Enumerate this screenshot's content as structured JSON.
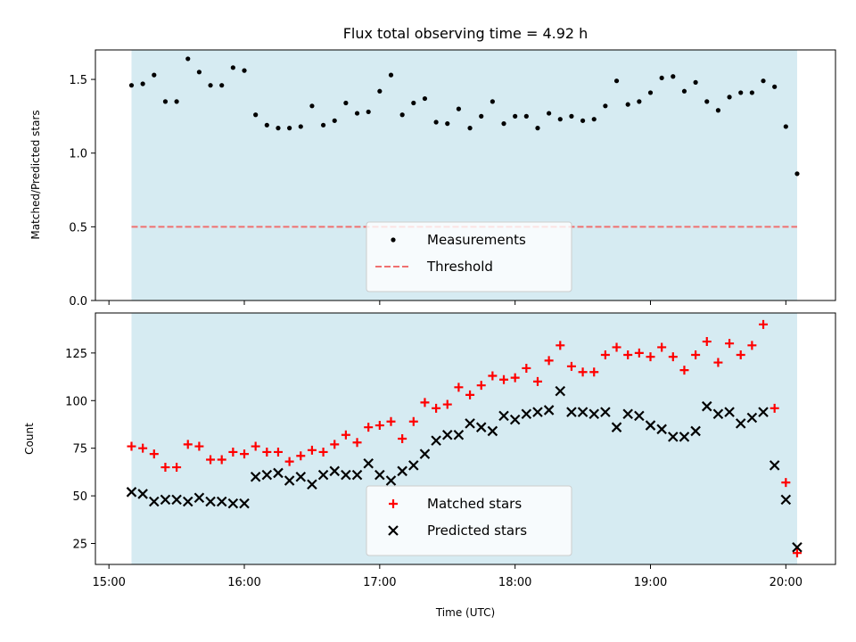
{
  "chart_data": [
    {
      "type": "scatter",
      "title": "Flux total observing time = 4.92 h",
      "ylabel": "Matched/Predicted stars",
      "ylim": [
        0,
        1.7
      ],
      "xlim": [
        "14:54",
        "20:22"
      ],
      "yticks": [
        {
          "v": 0,
          "label": "0.0"
        },
        {
          "v": 0.5,
          "label": "0.5"
        },
        {
          "v": 1.0,
          "label": "1.0"
        },
        {
          "v": 1.5,
          "label": "1.5"
        }
      ],
      "shaded_span": {
        "x0": "15:10",
        "x1": "20:05",
        "color": "#add8e6"
      },
      "legend_position": "lower-center",
      "threshold": {
        "name": "Threshold",
        "value": 0.5,
        "color": "#f07070",
        "style": "dashed"
      },
      "series": [
        {
          "name": "Measurements",
          "marker": "dot",
          "color": "#000000",
          "points": [
            [
              "15:10",
              1.46
            ],
            [
              "15:15",
              1.47
            ],
            [
              "15:20",
              1.53
            ],
            [
              "15:25",
              1.35
            ],
            [
              "15:30",
              1.35
            ],
            [
              "15:35",
              1.64
            ],
            [
              "15:40",
              1.55
            ],
            [
              "15:45",
              1.46
            ],
            [
              "15:50",
              1.46
            ],
            [
              "15:55",
              1.58
            ],
            [
              "16:00",
              1.56
            ],
            [
              "16:05",
              1.26
            ],
            [
              "16:10",
              1.19
            ],
            [
              "16:15",
              1.17
            ],
            [
              "16:20",
              1.17
            ],
            [
              "16:25",
              1.18
            ],
            [
              "16:30",
              1.32
            ],
            [
              "16:35",
              1.19
            ],
            [
              "16:40",
              1.22
            ],
            [
              "16:45",
              1.34
            ],
            [
              "16:50",
              1.27
            ],
            [
              "16:55",
              1.28
            ],
            [
              "17:00",
              1.42
            ],
            [
              "17:05",
              1.53
            ],
            [
              "17:10",
              1.26
            ],
            [
              "17:15",
              1.34
            ],
            [
              "17:20",
              1.37
            ],
            [
              "17:25",
              1.21
            ],
            [
              "17:30",
              1.2
            ],
            [
              "17:35",
              1.3
            ],
            [
              "17:40",
              1.17
            ],
            [
              "17:45",
              1.25
            ],
            [
              "17:50",
              1.35
            ],
            [
              "17:55",
              1.2
            ],
            [
              "18:00",
              1.25
            ],
            [
              "18:05",
              1.25
            ],
            [
              "18:10",
              1.17
            ],
            [
              "18:15",
              1.27
            ],
            [
              "18:20",
              1.23
            ],
            [
              "18:25",
              1.25
            ],
            [
              "18:30",
              1.22
            ],
            [
              "18:35",
              1.23
            ],
            [
              "18:40",
              1.32
            ],
            [
              "18:45",
              1.49
            ],
            [
              "18:50",
              1.33
            ],
            [
              "18:55",
              1.35
            ],
            [
              "19:00",
              1.41
            ],
            [
              "19:05",
              1.51
            ],
            [
              "19:10",
              1.52
            ],
            [
              "19:15",
              1.42
            ],
            [
              "19:20",
              1.48
            ],
            [
              "19:25",
              1.35
            ],
            [
              "19:30",
              1.29
            ],
            [
              "19:35",
              1.38
            ],
            [
              "19:40",
              1.41
            ],
            [
              "19:45",
              1.41
            ],
            [
              "19:50",
              1.49
            ],
            [
              "19:55",
              1.45
            ],
            [
              "20:00",
              1.18
            ],
            [
              "20:05",
              0.86
            ]
          ]
        }
      ]
    },
    {
      "type": "scatter",
      "xlabel": "Time (UTC)",
      "ylabel": "Count",
      "ylim": [
        14,
        146
      ],
      "xlim": [
        "14:54",
        "20:22"
      ],
      "yticks": [
        {
          "v": 25,
          "label": "25"
        },
        {
          "v": 50,
          "label": "50"
        },
        {
          "v": 75,
          "label": "75"
        },
        {
          "v": 100,
          "label": "100"
        },
        {
          "v": 125,
          "label": "125"
        }
      ],
      "xticks": [
        {
          "v": "15:00",
          "label": "15:00"
        },
        {
          "v": "16:00",
          "label": "16:00"
        },
        {
          "v": "17:00",
          "label": "17:00"
        },
        {
          "v": "18:00",
          "label": "18:00"
        },
        {
          "v": "19:00",
          "label": "19:00"
        },
        {
          "v": "20:00",
          "label": "20:00"
        }
      ],
      "shaded_span": {
        "x0": "15:10",
        "x1": "20:05",
        "color": "#add8e6"
      },
      "legend_position": "lower-center",
      "series": [
        {
          "name": "Matched stars",
          "marker": "plus",
          "color": "#ff0000",
          "points": [
            [
              "15:10",
              76
            ],
            [
              "15:15",
              75
            ],
            [
              "15:20",
              72
            ],
            [
              "15:25",
              65
            ],
            [
              "15:30",
              65
            ],
            [
              "15:35",
              77
            ],
            [
              "15:40",
              76
            ],
            [
              "15:45",
              69
            ],
            [
              "15:50",
              69
            ],
            [
              "15:55",
              73
            ],
            [
              "16:00",
              72
            ],
            [
              "16:05",
              76
            ],
            [
              "16:10",
              73
            ],
            [
              "16:15",
              73
            ],
            [
              "16:20",
              68
            ],
            [
              "16:25",
              71
            ],
            [
              "16:30",
              74
            ],
            [
              "16:35",
              73
            ],
            [
              "16:40",
              77
            ],
            [
              "16:45",
              82
            ],
            [
              "16:50",
              78
            ],
            [
              "16:55",
              86
            ],
            [
              "17:00",
              87
            ],
            [
              "17:05",
              89
            ],
            [
              "17:10",
              80
            ],
            [
              "17:15",
              89
            ],
            [
              "17:20",
              99
            ],
            [
              "17:25",
              96
            ],
            [
              "17:30",
              98
            ],
            [
              "17:35",
              107
            ],
            [
              "17:40",
              103
            ],
            [
              "17:45",
              108
            ],
            [
              "17:50",
              113
            ],
            [
              "17:55",
              111
            ],
            [
              "18:00",
              112
            ],
            [
              "18:05",
              117
            ],
            [
              "18:10",
              110
            ],
            [
              "18:15",
              121
            ],
            [
              "18:20",
              129
            ],
            [
              "18:25",
              118
            ],
            [
              "18:30",
              115
            ],
            [
              "18:35",
              115
            ],
            [
              "18:40",
              124
            ],
            [
              "18:45",
              128
            ],
            [
              "18:50",
              124
            ],
            [
              "18:55",
              125
            ],
            [
              "19:00",
              123
            ],
            [
              "19:05",
              128
            ],
            [
              "19:10",
              123
            ],
            [
              "19:15",
              116
            ],
            [
              "19:20",
              124
            ],
            [
              "19:25",
              131
            ],
            [
              "19:30",
              120
            ],
            [
              "19:35",
              130
            ],
            [
              "19:40",
              124
            ],
            [
              "19:45",
              129
            ],
            [
              "19:50",
              140
            ],
            [
              "19:55",
              96
            ],
            [
              "20:00",
              57
            ],
            [
              "20:05",
              20
            ]
          ]
        },
        {
          "name": "Predicted stars",
          "marker": "x",
          "color": "#000000",
          "points": [
            [
              "15:10",
              52
            ],
            [
              "15:15",
              51
            ],
            [
              "15:20",
              47
            ],
            [
              "15:25",
              48
            ],
            [
              "15:30",
              48
            ],
            [
              "15:35",
              47
            ],
            [
              "15:40",
              49
            ],
            [
              "15:45",
              47
            ],
            [
              "15:50",
              47
            ],
            [
              "15:55",
              46
            ],
            [
              "16:00",
              46
            ],
            [
              "16:05",
              60
            ],
            [
              "16:10",
              61
            ],
            [
              "16:15",
              62
            ],
            [
              "16:20",
              58
            ],
            [
              "16:25",
              60
            ],
            [
              "16:30",
              56
            ],
            [
              "16:35",
              61
            ],
            [
              "16:40",
              63
            ],
            [
              "16:45",
              61
            ],
            [
              "16:50",
              61
            ],
            [
              "16:55",
              67
            ],
            [
              "17:00",
              61
            ],
            [
              "17:05",
              58
            ],
            [
              "17:10",
              63
            ],
            [
              "17:15",
              66
            ],
            [
              "17:20",
              72
            ],
            [
              "17:25",
              79
            ],
            [
              "17:30",
              82
            ],
            [
              "17:35",
              82
            ],
            [
              "17:40",
              88
            ],
            [
              "17:45",
              86
            ],
            [
              "17:50",
              84
            ],
            [
              "17:55",
              92
            ],
            [
              "18:00",
              90
            ],
            [
              "18:05",
              93
            ],
            [
              "18:10",
              94
            ],
            [
              "18:15",
              95
            ],
            [
              "18:20",
              105
            ],
            [
              "18:25",
              94
            ],
            [
              "18:30",
              94
            ],
            [
              "18:35",
              93
            ],
            [
              "18:40",
              94
            ],
            [
              "18:45",
              86
            ],
            [
              "18:50",
              93
            ],
            [
              "18:55",
              92
            ],
            [
              "19:00",
              87
            ],
            [
              "19:05",
              85
            ],
            [
              "19:10",
              81
            ],
            [
              "19:15",
              81
            ],
            [
              "19:20",
              84
            ],
            [
              "19:25",
              97
            ],
            [
              "19:30",
              93
            ],
            [
              "19:35",
              94
            ],
            [
              "19:40",
              88
            ],
            [
              "19:45",
              91
            ],
            [
              "19:50",
              94
            ],
            [
              "19:55",
              66
            ],
            [
              "20:00",
              48
            ],
            [
              "20:05",
              23
            ]
          ]
        }
      ]
    }
  ]
}
